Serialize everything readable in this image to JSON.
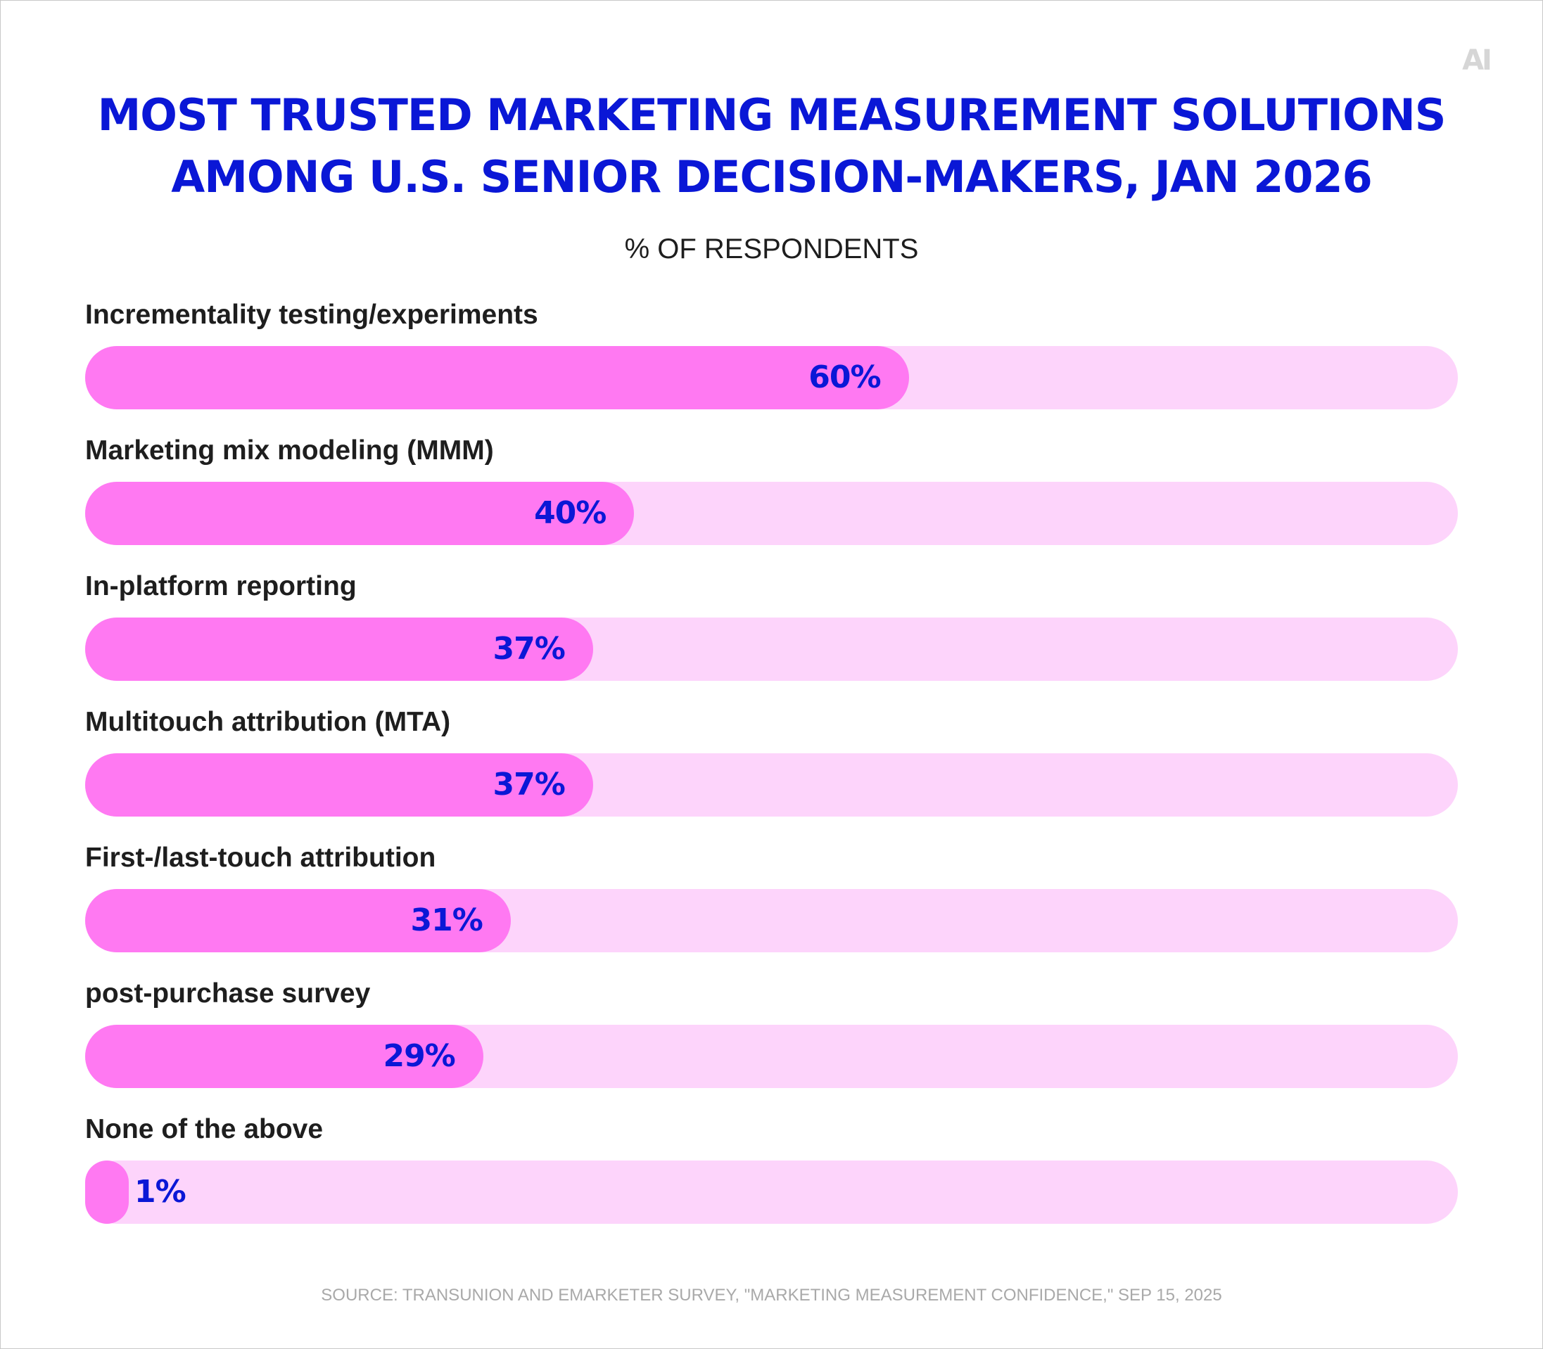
{
  "logo": "AI",
  "title_lines": [
    "MOST TRUSTED MARKETING MEASUREMENT SOLUTIONS",
    "AMONG U.S. SENIOR DECISION-MAKERS, JAN 2026"
  ],
  "subtitle": "% OF RESPONDENTS",
  "source": "SOURCE: TRANSUNION AND EMARKETER SURVEY, \"MARKETING MEASUREMENT CONFIDENCE,\" SEP 15, 2025",
  "colors": {
    "title": "#0a17d6",
    "bar_fill": "#ff79f2",
    "bar_track": "#fdd4fb",
    "label": "#1e1e1e",
    "source": "#a9a9a9"
  },
  "chart_data": {
    "type": "bar",
    "orientation": "horizontal",
    "title": "MOST TRUSTED MARKETING MEASUREMENT SOLUTIONS AMONG U.S. SENIOR DECISION-MAKERS, JAN 2026",
    "subtitle": "% OF RESPONDENTS",
    "categories": [
      "Incrementality testing/experiments",
      "Marketing mix modeling (MMM)",
      "In-platform reporting",
      "Multitouch attribution (MTA)",
      "First-/last-touch attribution",
      "post-purchase survey",
      "None of the above"
    ],
    "values": [
      60,
      40,
      37,
      37,
      31,
      29,
      1
    ],
    "value_labels": [
      "60%",
      "40%",
      "37%",
      "37%",
      "31%",
      "29%",
      "1%"
    ],
    "xlim": [
      0,
      100
    ],
    "grid": false,
    "legend": "none"
  }
}
